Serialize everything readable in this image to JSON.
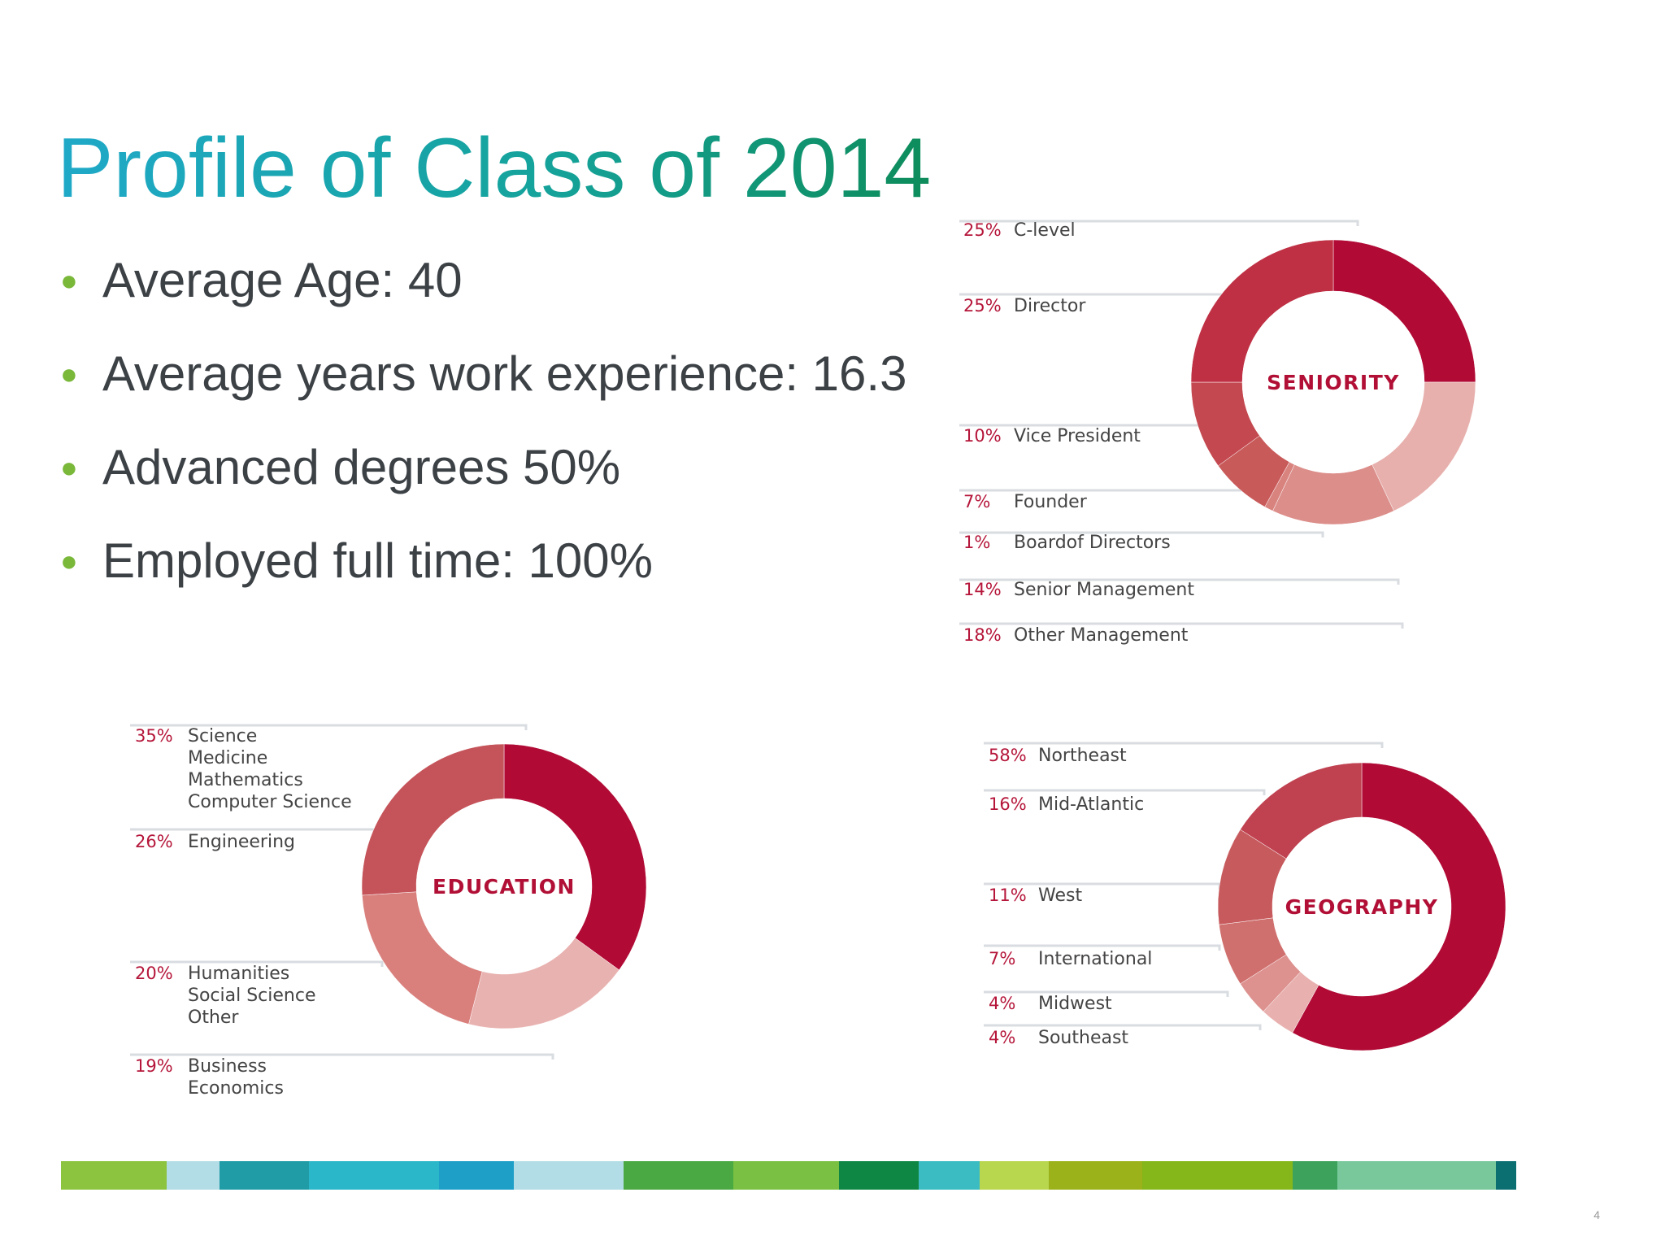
{
  "slide": {
    "title": "Profile of Class of 2014",
    "bullets": [
      "Average Age: 40",
      "Average years work experience: 16.3",
      "Advanced degrees 50%",
      "Employed full time: 100%"
    ],
    "page_number": "4",
    "bullet_color": "#7ab83a"
  },
  "chart_data": [
    {
      "type": "donut",
      "id": "seniority",
      "title": "SENIORITY",
      "units": "percent",
      "slices": [
        {
          "pct": "25%",
          "label": [
            "C-level"
          ],
          "value": 25,
          "color": "#b10a35"
        },
        {
          "pct": "18%",
          "label": [
            "Other Management"
          ],
          "value": 18,
          "color": "#e7b0ad"
        },
        {
          "pct": "14%",
          "label": [
            "Senior Management"
          ],
          "value": 14,
          "color": "#dc8e8a"
        },
        {
          "pct": "1%",
          "label": [
            "Boardof Directors"
          ],
          "value": 1,
          "color": "#d9837f"
        },
        {
          "pct": "7%",
          "label": [
            "Founder"
          ],
          "value": 7,
          "color": "#c95a5a"
        },
        {
          "pct": "10%",
          "label": [
            "Vice President"
          ],
          "value": 10,
          "color": "#c4484f"
        },
        {
          "pct": "25%",
          "label": [
            "Director"
          ],
          "value": 25,
          "color": "#bf3044"
        }
      ]
    },
    {
      "type": "donut",
      "id": "education",
      "title": "EDUCATION",
      "units": "percent",
      "slices": [
        {
          "pct": "35%",
          "label": [
            "Science",
            "Medicine",
            "Mathematics",
            "Computer Science"
          ],
          "value": 35,
          "color": "#b10a35"
        },
        {
          "pct": "19%",
          "label": [
            "Business",
            "Economics"
          ],
          "value": 19,
          "color": "#e8b2b0"
        },
        {
          "pct": "20%",
          "label": [
            "Humanities",
            "Social Science",
            "Other"
          ],
          "value": 20,
          "color": "#d9807d"
        },
        {
          "pct": "26%",
          "label": [
            "Engineering"
          ],
          "value": 26,
          "color": "#c5545a"
        }
      ]
    },
    {
      "type": "donut",
      "id": "geography",
      "title": "GEOGRAPHY",
      "units": "percent",
      "slices": [
        {
          "pct": "58%",
          "label": [
            "Northeast"
          ],
          "value": 58,
          "color": "#b10a35"
        },
        {
          "pct": "4%",
          "label": [
            "Southeast"
          ],
          "value": 4,
          "color": "#e8b0ae"
        },
        {
          "pct": "4%",
          "label": [
            "Midwest"
          ],
          "value": 4,
          "color": "#dd928f"
        },
        {
          "pct": "7%",
          "label": [
            "International"
          ],
          "value": 7,
          "color": "#d0706e"
        },
        {
          "pct": "11%",
          "label": [
            "West"
          ],
          "value": 11,
          "color": "#c75a5d"
        },
        {
          "pct": "16%",
          "label": [
            "Mid-Atlantic"
          ],
          "value": 16,
          "color": "#c04150"
        }
      ]
    }
  ],
  "footer_colors": [
    "#8cc43f",
    "#b3dde6",
    "#1f9ca6",
    "#2ab7c9",
    "#1d9fc8",
    "#b3dde6",
    "#4aa943",
    "#7ac043",
    "#0e8744",
    "#3bbcc2",
    "#b9d64f",
    "#9bb21a",
    "#85b61a",
    "#3da35c",
    "#78c89b",
    "#0b6f72"
  ]
}
